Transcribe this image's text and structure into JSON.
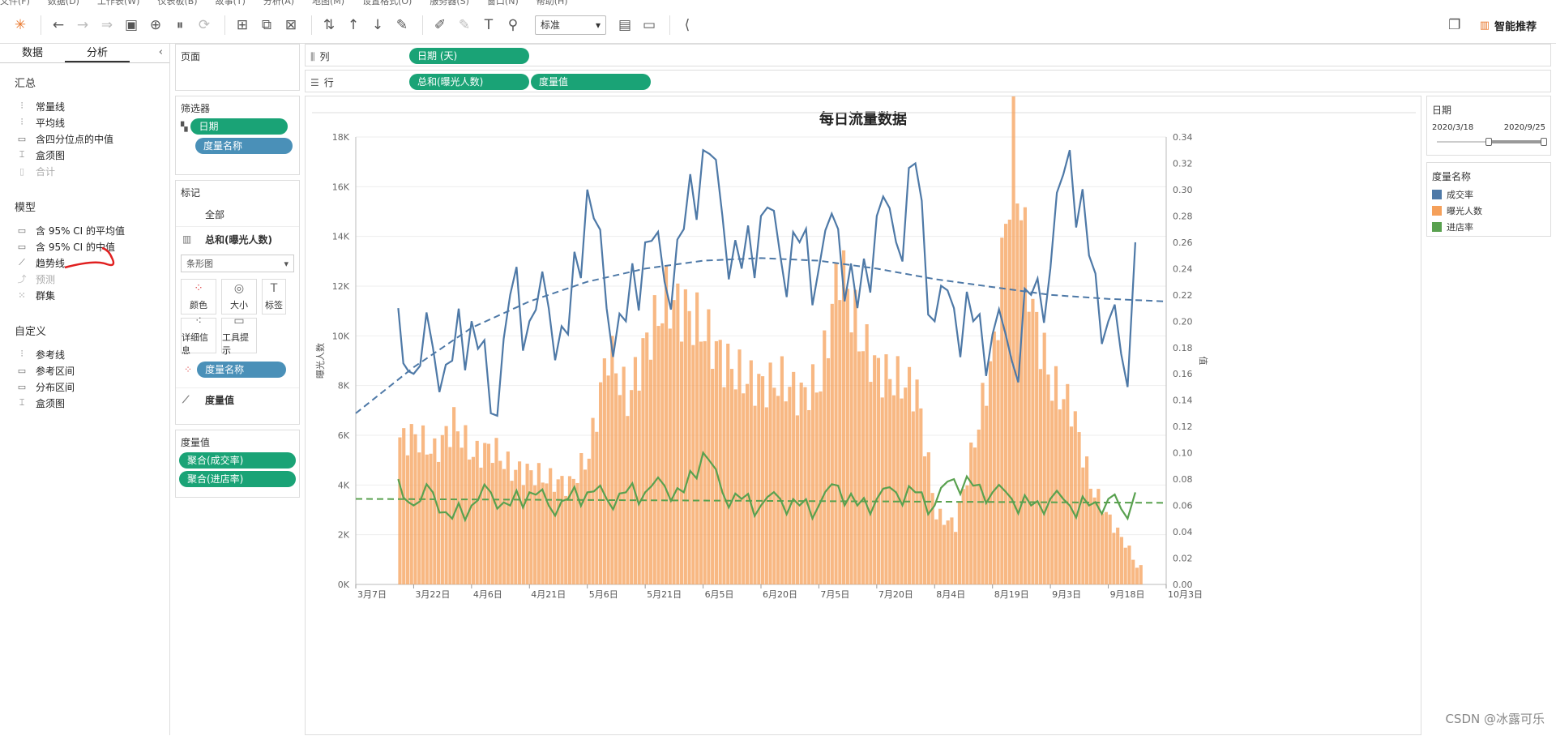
{
  "menubar": [
    "文件(F)",
    "数据(D)",
    "工作表(W)",
    "仪表板(B)",
    "故事(T)",
    "分析(A)",
    "地图(M)",
    "设置格式(O)",
    "服务器(S)",
    "窗口(N)",
    "帮助(H)"
  ],
  "toolbar": {
    "view_size": "标准",
    "smart_recommend": "智能推荐"
  },
  "left_panel": {
    "tabs": [
      "数据",
      "分析"
    ],
    "active_tab": "分析",
    "sections": [
      {
        "title": "汇总",
        "items": [
          {
            "label": "常量线",
            "icon": "reference-line-icon",
            "enabled": true
          },
          {
            "label": "平均线",
            "icon": "reference-line-icon",
            "enabled": true
          },
          {
            "label": "含四分位点的中值",
            "icon": "band-icon",
            "enabled": true
          },
          {
            "label": "盒须图",
            "icon": "boxplot-icon",
            "enabled": true
          },
          {
            "label": "合计",
            "icon": "totals-icon",
            "enabled": false
          }
        ]
      },
      {
        "title": "模型",
        "items": [
          {
            "label": "含 95% CI 的平均值",
            "icon": "band-icon",
            "enabled": true
          },
          {
            "label": "含 95% CI 的中值",
            "icon": "band-icon",
            "enabled": true
          },
          {
            "label": "趋势线",
            "icon": "trend-line-icon",
            "enabled": true
          },
          {
            "label": "预测",
            "icon": "forecast-icon",
            "enabled": false
          },
          {
            "label": "群集",
            "icon": "cluster-icon",
            "enabled": true
          }
        ]
      },
      {
        "title": "自定义",
        "items": [
          {
            "label": "参考线",
            "icon": "reference-line-icon",
            "enabled": true
          },
          {
            "label": "参考区间",
            "icon": "band-icon",
            "enabled": true
          },
          {
            "label": "分布区间",
            "icon": "band-icon",
            "enabled": true
          },
          {
            "label": "盒须图",
            "icon": "boxplot-icon",
            "enabled": true
          }
        ]
      }
    ]
  },
  "pages_card": {
    "title": "页面"
  },
  "filters_card": {
    "title": "筛选器",
    "pills": [
      "日期",
      "度量名称"
    ]
  },
  "marks_card": {
    "title": "标记",
    "all_label": "全部",
    "measure_label": "总和(曝光人数)",
    "mark_type": "条形图",
    "buttons": [
      "颜色",
      "大小",
      "标签",
      "详细信息",
      "工具提示"
    ],
    "color_pill": "度量名称",
    "measure_values_label": "度量值"
  },
  "measure_values_card": {
    "title": "度量值",
    "pills": [
      "聚合(成交率)",
      "聚合(进店率)"
    ]
  },
  "shelves": {
    "columns_label": "列",
    "columns_pill": "日期 (天)",
    "rows_label": "行",
    "rows_pills": [
      "总和(曝光人数)",
      "度量值"
    ]
  },
  "date_filter": {
    "title": "日期",
    "start": "2020/3/18",
    "end": "2020/9/25"
  },
  "legend": {
    "title": "度量名称",
    "items": [
      {
        "name": "成交率",
        "color": "#4e79a7"
      },
      {
        "name": "曝光人数",
        "color": "#f5a05a"
      },
      {
        "name": "进店率",
        "color": "#59a14f"
      }
    ]
  },
  "watermark": "CSDN @冰露可乐",
  "chart_data": {
    "type": "bar+line",
    "title": "每日流量数据",
    "ylabel_left": "曝光人数",
    "ylabel_right": "值",
    "x_ticks": [
      "3月7日",
      "3月22日",
      "4月6日",
      "4月21日",
      "5月6日",
      "5月21日",
      "6月5日",
      "6月20日",
      "7月5日",
      "7月20日",
      "8月4日",
      "8月19日",
      "9月3日",
      "9月18日",
      "10月3日"
    ],
    "x_start": "2020-03-07",
    "x_end": "2020-10-03",
    "left_axis": {
      "min": 0,
      "max": 18000,
      "ticks": [
        "0K",
        "2K",
        "4K",
        "6K",
        "8K",
        "10K",
        "12K",
        "14K",
        "16K",
        "18K"
      ]
    },
    "right_axis": {
      "min": 0,
      "max": 0.34,
      "ticks": [
        "0.00",
        "0.02",
        "0.04",
        "0.06",
        "0.08",
        "0.10",
        "0.12",
        "0.14",
        "0.16",
        "0.18",
        "0.20",
        "0.22",
        "0.24",
        "0.26",
        "0.28",
        "0.30",
        "0.32",
        "0.34"
      ]
    },
    "series": [
      {
        "name": "曝光人数",
        "axis": "left",
        "type": "bar",
        "color": "#f5a05a",
        "dates": [
          "3/18",
          "3/22",
          "3/27",
          "4/1",
          "4/6",
          "4/11",
          "4/16",
          "4/21",
          "4/26",
          "5/1",
          "5/6",
          "5/11",
          "5/16",
          "5/21",
          "5/26",
          "5/31",
          "6/5",
          "6/10",
          "6/15",
          "6/20",
          "6/25",
          "6/30",
          "7/5",
          "7/10",
          "7/15",
          "7/20",
          "7/25",
          "7/30",
          "8/4",
          "8/9",
          "8/14",
          "8/19",
          "8/24",
          "8/29",
          "9/3",
          "9/8",
          "9/13",
          "9/18",
          "9/23",
          "9/25"
        ],
        "values": [
          5800,
          6000,
          5300,
          6500,
          5200,
          5500,
          4600,
          4500,
          4200,
          4000,
          5200,
          9500,
          7400,
          9800,
          11500,
          11000,
          10200,
          9000,
          8300,
          8000,
          8200,
          7600,
          8200,
          13000,
          10000,
          8600,
          8200,
          7800,
          2800,
          2400,
          5800,
          9500,
          17800,
          11000,
          8000,
          7200,
          4000,
          2600,
          1400,
          700
        ]
      },
      {
        "name": "成交率",
        "axis": "right",
        "type": "line",
        "color": "#4e79a7",
        "dates": [
          "3/18",
          "3/22",
          "3/27",
          "4/1",
          "4/6",
          "4/11",
          "4/16",
          "4/21",
          "4/26",
          "5/1",
          "5/6",
          "5/11",
          "5/16",
          "5/21",
          "5/26",
          "5/31",
          "6/5",
          "6/10",
          "6/15",
          "6/20",
          "6/25",
          "6/30",
          "7/5",
          "7/10",
          "7/15",
          "7/20",
          "7/25",
          "7/30",
          "8/4",
          "8/9",
          "8/14",
          "8/19",
          "8/24",
          "8/29",
          "9/3",
          "9/8",
          "9/13",
          "9/18",
          "9/23",
          "9/25"
        ],
        "values": [
          0.21,
          0.16,
          0.18,
          0.17,
          0.2,
          0.13,
          0.22,
          0.2,
          0.21,
          0.19,
          0.3,
          0.21,
          0.2,
          0.26,
          0.23,
          0.27,
          0.33,
          0.28,
          0.24,
          0.28,
          0.25,
          0.26,
          0.24,
          0.27,
          0.21,
          0.28,
          0.26,
          0.32,
          0.2,
          0.21,
          0.2,
          0.19,
          0.17,
          0.22,
          0.24,
          0.33,
          0.25,
          0.2,
          0.15,
          0.26
        ]
      },
      {
        "name": "进店率",
        "axis": "right",
        "type": "line",
        "color": "#59a14f",
        "dates": [
          "3/18",
          "3/22",
          "3/27",
          "4/1",
          "4/6",
          "4/11",
          "4/16",
          "4/21",
          "4/26",
          "5/1",
          "5/6",
          "5/11",
          "5/16",
          "5/21",
          "5/26",
          "5/31",
          "6/5",
          "6/10",
          "6/15",
          "6/20",
          "6/25",
          "6/30",
          "7/5",
          "7/10",
          "7/15",
          "7/20",
          "7/25",
          "7/30",
          "8/4",
          "8/9",
          "8/14",
          "8/19",
          "8/24",
          "8/29",
          "9/3",
          "9/8",
          "9/13",
          "9/18",
          "9/23",
          "9/25"
        ],
        "values": [
          0.08,
          0.06,
          0.07,
          0.05,
          0.06,
          0.07,
          0.06,
          0.07,
          0.06,
          0.065,
          0.07,
          0.065,
          0.07,
          0.07,
          0.075,
          0.07,
          0.1,
          0.07,
          0.065,
          0.06,
          0.065,
          0.06,
          0.06,
          0.075,
          0.06,
          0.065,
          0.07,
          0.07,
          0.06,
          0.08,
          0.075,
          0.07,
          0.065,
          0.06,
          0.065,
          0.06,
          0.06,
          0.065,
          0.05,
          0.07
        ]
      },
      {
        "name": "成交率 趋势线",
        "axis": "right",
        "type": "trend",
        "color": "#4e79a7",
        "dashed": true,
        "dates": [
          "3/7",
          "3/22",
          "4/6",
          "4/21",
          "5/6",
          "5/21",
          "6/5",
          "6/20",
          "7/5",
          "7/20",
          "8/4",
          "8/19",
          "9/3",
          "9/18",
          "10/3"
        ],
        "values": [
          0.13,
          0.165,
          0.195,
          0.215,
          0.23,
          0.24,
          0.246,
          0.248,
          0.246,
          0.24,
          0.232,
          0.226,
          0.22,
          0.217,
          0.215
        ]
      },
      {
        "name": "进店率 趋势线",
        "axis": "right",
        "type": "trend",
        "color": "#59a14f",
        "dashed": true,
        "dates": [
          "3/7",
          "10/3"
        ],
        "values": [
          0.065,
          0.062
        ]
      }
    ],
    "grid": true,
    "legend_position": "right"
  }
}
